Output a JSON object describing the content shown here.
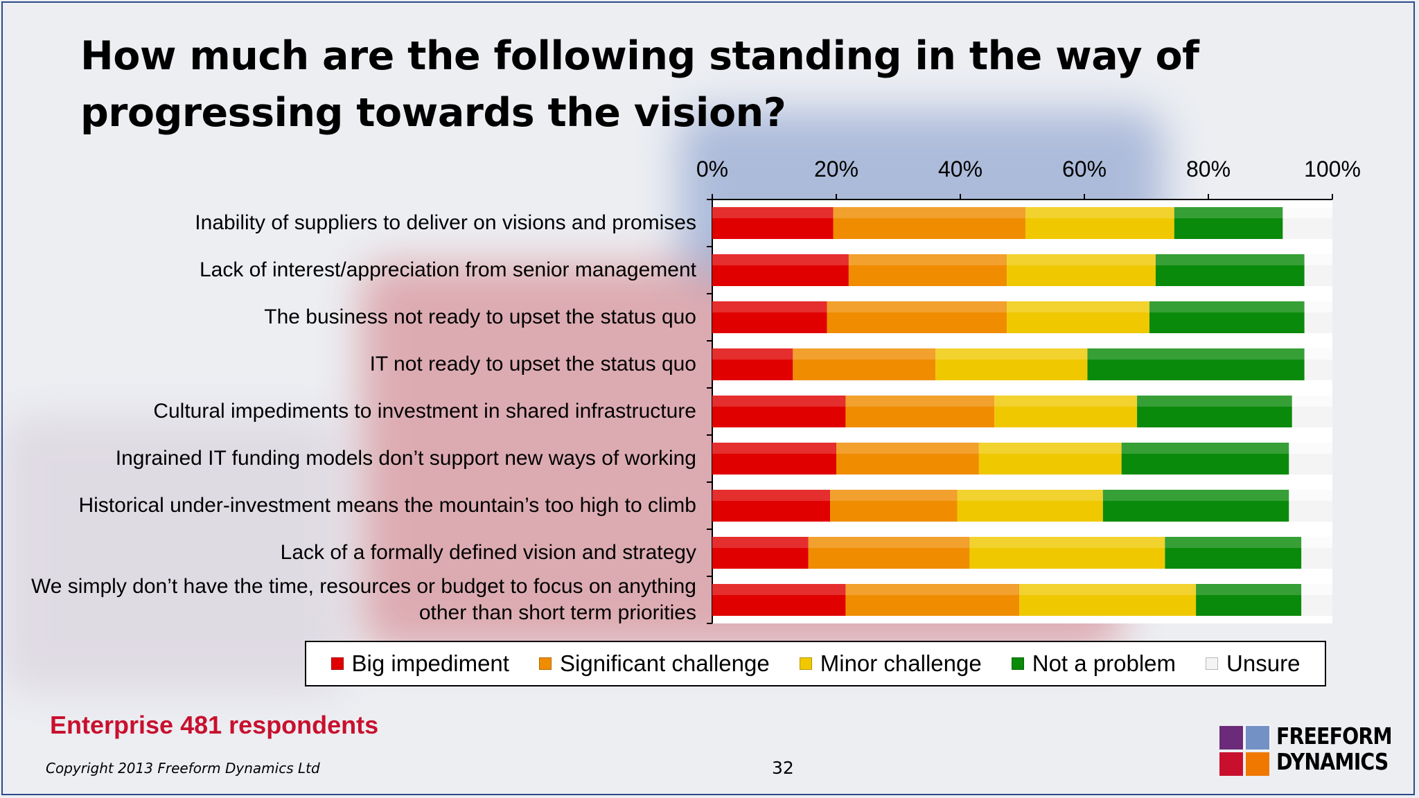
{
  "title": "How much are the following standing in the way of progressing towards the vision?",
  "respondents": "Enterprise 481 respondents",
  "copyright": "Copyright 2013 Freeform Dynamics Ltd",
  "page_number": "32",
  "logo": {
    "line1": "FREEFORM",
    "line2": "DYNAMICS"
  },
  "colors": {
    "big_impediment": "#e00000",
    "significant_challenge": "#f08c00",
    "minor_challenge": "#f0c800",
    "not_a_problem": "#0a8a0a",
    "unsure": "#f4f4f4"
  },
  "chart_data": {
    "type": "bar",
    "orientation": "horizontal",
    "stacked": true,
    "title": "",
    "xlabel": "",
    "ylabel": "",
    "xlim": [
      0,
      100
    ],
    "x_ticks": [
      "0%",
      "20%",
      "40%",
      "60%",
      "80%",
      "100%"
    ],
    "legend_position": "bottom",
    "categories": [
      "Inability of suppliers to deliver on visions and promises",
      "Lack of interest/appreciation from senior management",
      "The business not ready to upset the status quo",
      "IT not ready to upset the status quo",
      "Cultural impediments to investment in shared infrastructure",
      "Ingrained IT funding models don’t support new ways of working",
      "Historical under-investment means the mountain’s too high to climb",
      "Lack of a formally defined vision and strategy",
      "We simply don’t have the time, resources or budget to focus on anything other than short term priorities"
    ],
    "series": [
      {
        "name": "Big impediment",
        "values": [
          19.5,
          22,
          18.5,
          13,
          21.5,
          20,
          19,
          15.5,
          21.5
        ]
      },
      {
        "name": "Significant challenge",
        "values": [
          31,
          25.5,
          29,
          23,
          24,
          23,
          20.5,
          26,
          28
        ]
      },
      {
        "name": "Minor challenge",
        "values": [
          24,
          24,
          23,
          24.5,
          23,
          23,
          23.5,
          31.5,
          28.5
        ]
      },
      {
        "name": "Not a problem",
        "values": [
          17.5,
          24,
          25,
          35,
          25,
          27,
          30,
          22,
          17
        ]
      },
      {
        "name": "Unsure",
        "values": [
          8,
          4.5,
          4.5,
          4.5,
          6.5,
          7,
          7,
          5,
          5
        ]
      }
    ]
  }
}
